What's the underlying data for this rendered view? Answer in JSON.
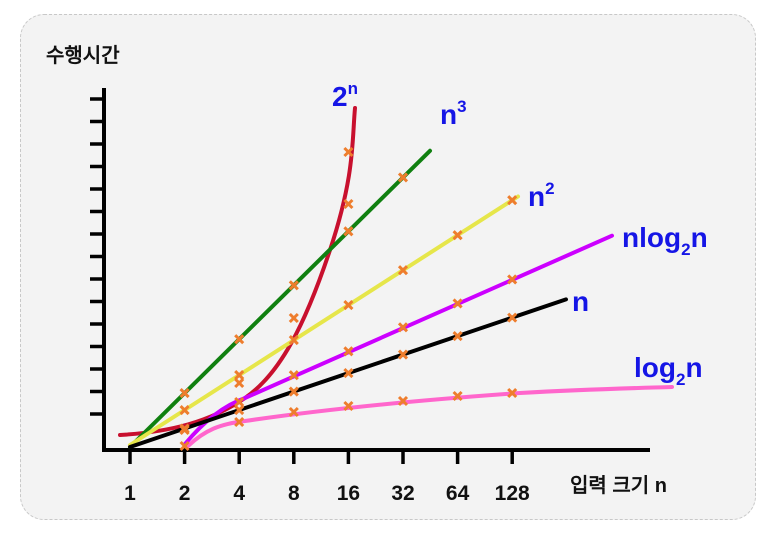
{
  "chart_data": {
    "type": "line",
    "ylabel": "수행시간",
    "xlabel": "입력 크기 n",
    "x_ticks": [
      "1",
      "2",
      "4",
      "8",
      "16",
      "32",
      "64",
      "128"
    ],
    "x_scale": "log2",
    "y_values_shown": false,
    "grid": false,
    "legend": "inline labels at line ends",
    "series": [
      {
        "name": "2",
        "name_sup": "n",
        "color": "#c8102e",
        "marker_x": [
          2,
          4,
          8,
          16
        ]
      },
      {
        "name": "n",
        "name_sup": "3",
        "color": "#108010",
        "marker_x": [
          2,
          4,
          8,
          16,
          32
        ]
      },
      {
        "name": "n",
        "name_sup": "2",
        "color": "#e6e64a",
        "marker_x": [
          2,
          4,
          8,
          16,
          32,
          64,
          128
        ]
      },
      {
        "name": "nlog",
        "name_sub": "2",
        "name_after": "n",
        "color": "#cc00ff",
        "marker_x": [
          4,
          8,
          16,
          32,
          64,
          128
        ]
      },
      {
        "name": "n",
        "color": "#000000",
        "marker_x": [
          2,
          4,
          8,
          16,
          32,
          64,
          128
        ]
      },
      {
        "name": "log",
        "name_sub": "2",
        "name_after": "n",
        "color": "#ff66cc",
        "marker_x": [
          4,
          8,
          16,
          32,
          64,
          128
        ]
      }
    ],
    "marker_color": "#ee7d2d",
    "label_color": "#1515e6"
  }
}
